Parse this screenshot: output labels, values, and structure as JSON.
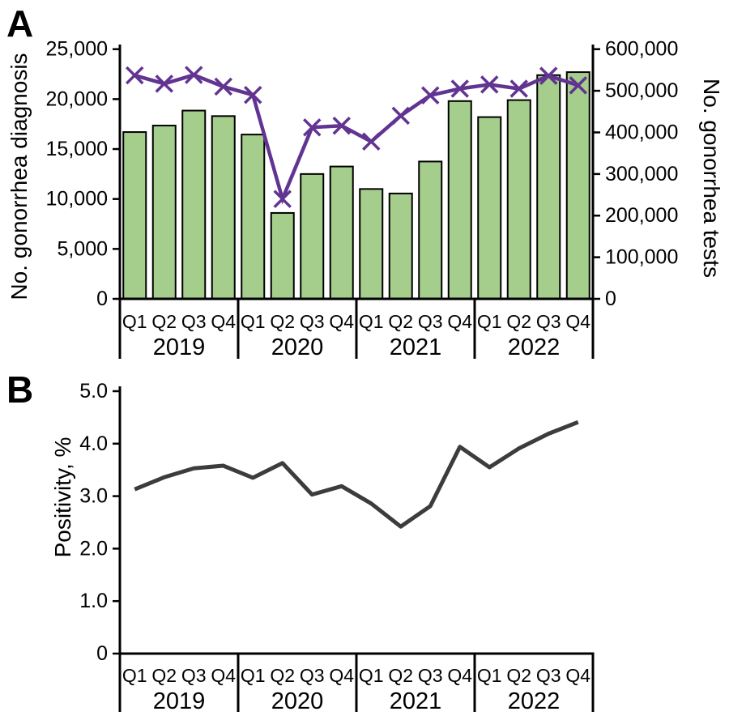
{
  "panels": {
    "a": {
      "letter": "A",
      "left_axis_title": "No. gonorrhea diagnosis",
      "right_axis_title": "No. gonorrhea tests"
    },
    "b": {
      "letter": "B",
      "left_axis_title": "Positivity, %"
    }
  },
  "colors": {
    "bar_fill": "#a5cd8c",
    "bar_stroke": "#000000",
    "tests_line": "#623492",
    "positivity_line": "#3c3c3c",
    "axis": "#000000"
  },
  "chart_data": [
    {
      "id": "A",
      "type": "bar",
      "subtype": "bar+line combo",
      "quarter_labels": [
        "Q1",
        "Q2",
        "Q3",
        "Q4",
        "Q1",
        "Q2",
        "Q3",
        "Q4",
        "Q1",
        "Q2",
        "Q3",
        "Q4",
        "Q1",
        "Q2",
        "Q3",
        "Q4"
      ],
      "year_groups": [
        "2019",
        "2020",
        "2021",
        "2022"
      ],
      "series": [
        {
          "name": "No. gonorrhea diagnosis",
          "type": "bar",
          "axis": "left",
          "color": "#a5cd8c",
          "values": [
            16700,
            17350,
            18850,
            18300,
            16450,
            8600,
            12500,
            13250,
            11000,
            10550,
            13750,
            19800,
            18200,
            19900,
            22400,
            22700
          ]
        },
        {
          "name": "No. gonorrhea tests",
          "type": "line",
          "axis": "right",
          "marker": "x",
          "color": "#623492",
          "values": [
            537000,
            517000,
            538000,
            510000,
            490000,
            240000,
            412000,
            416000,
            378000,
            440000,
            489000,
            505000,
            515000,
            505000,
            536000,
            513000
          ]
        }
      ],
      "left_axis": {
        "title": "No. gonorrhea diagnosis",
        "min": 0,
        "max": 25000,
        "step": 5000,
        "tick_labels": [
          "0",
          "5,000",
          "10,000",
          "15,000",
          "20,000",
          "25,000"
        ]
      },
      "right_axis": {
        "title": "No. gonorrhea tests",
        "min": 0,
        "max": 600000,
        "step": 100000,
        "tick_labels": [
          "0",
          "100,000",
          "200,000",
          "300,000",
          "400,000",
          "500,000",
          "600,000"
        ]
      },
      "grid": false,
      "legend": false
    },
    {
      "id": "B",
      "type": "line",
      "quarter_labels": [
        "Q1",
        "Q2",
        "Q3",
        "Q4",
        "Q1",
        "Q2",
        "Q3",
        "Q4",
        "Q1",
        "Q2",
        "Q3",
        "Q4",
        "Q1",
        "Q2",
        "Q3",
        "Q4"
      ],
      "year_groups": [
        "2019",
        "2020",
        "2021",
        "2022"
      ],
      "series": [
        {
          "name": "Positivity, %",
          "type": "line",
          "axis": "left",
          "color": "#3c3c3c",
          "values": [
            3.13,
            3.36,
            3.53,
            3.58,
            3.35,
            3.63,
            3.03,
            3.19,
            2.86,
            2.42,
            2.81,
            3.94,
            3.55,
            3.91,
            4.19,
            4.41
          ]
        }
      ],
      "left_axis": {
        "title": "Positivity, %",
        "min": 0,
        "max": 5,
        "step": 1,
        "tick_labels": [
          "0",
          "1.0",
          "2.0",
          "3.0",
          "4.0",
          "5.0"
        ]
      },
      "grid": false,
      "legend": false
    }
  ]
}
